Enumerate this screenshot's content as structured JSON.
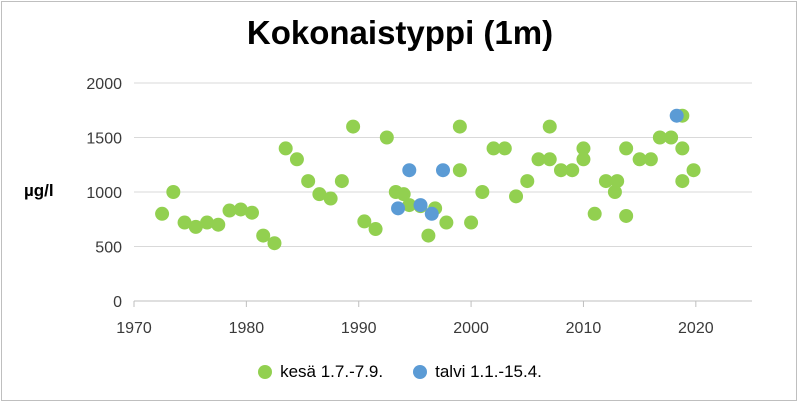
{
  "chart_data": {
    "type": "scatter",
    "title": "Kokonaistyppi (1m)",
    "xlabel": "",
    "ylabel": "µg/l",
    "xlim": [
      1970,
      2025
    ],
    "ylim": [
      0,
      2000
    ],
    "xticks": [
      1970,
      1980,
      1990,
      2000,
      2010,
      2020
    ],
    "yticks": [
      0,
      500,
      1000,
      1500,
      2000
    ],
    "grid": "horizontal",
    "legend_position": "bottom",
    "series": [
      {
        "name": "kesä 1.7.-7.9.",
        "color": "#92d050",
        "points": [
          [
            1972.5,
            800
          ],
          [
            1973.5,
            1000
          ],
          [
            1974.5,
            720
          ],
          [
            1975.5,
            680
          ],
          [
            1976.5,
            720
          ],
          [
            1977.5,
            700
          ],
          [
            1978.5,
            830
          ],
          [
            1979.5,
            840
          ],
          [
            1980.5,
            810
          ],
          [
            1981.5,
            600
          ],
          [
            1982.5,
            530
          ],
          [
            1983.5,
            1400
          ],
          [
            1984.5,
            1300
          ],
          [
            1985.5,
            1100
          ],
          [
            1986.5,
            980
          ],
          [
            1987.5,
            940
          ],
          [
            1988.5,
            1100
          ],
          [
            1989.5,
            1600
          ],
          [
            1990.5,
            730
          ],
          [
            1991.5,
            660
          ],
          [
            1992.5,
            1500
          ],
          [
            1993.3,
            1000
          ],
          [
            1994.0,
            980
          ],
          [
            1994.5,
            880
          ],
          [
            1995.5,
            870
          ],
          [
            1996.2,
            600
          ],
          [
            1996.8,
            850
          ],
          [
            1997.8,
            720
          ],
          [
            1999.0,
            1200
          ],
          [
            1999.0,
            1600
          ],
          [
            2000.0,
            720
          ],
          [
            2001.0,
            1000
          ],
          [
            2002.0,
            1400
          ],
          [
            2003.0,
            1400
          ],
          [
            2004.0,
            960
          ],
          [
            2005.0,
            1100
          ],
          [
            2006.0,
            1300
          ],
          [
            2007.0,
            1300
          ],
          [
            2007.0,
            1600
          ],
          [
            2008.0,
            1200
          ],
          [
            2009.0,
            1200
          ],
          [
            2010.0,
            1300
          ],
          [
            2010.0,
            1400
          ],
          [
            2011.0,
            800
          ],
          [
            2012.0,
            1100
          ],
          [
            2012.8,
            1000
          ],
          [
            2013.0,
            1100
          ],
          [
            2013.8,
            780
          ],
          [
            2013.8,
            1400
          ],
          [
            2015.0,
            1300
          ],
          [
            2016.0,
            1300
          ],
          [
            2016.8,
            1500
          ],
          [
            2017.8,
            1500
          ],
          [
            2018.8,
            1700
          ],
          [
            2018.8,
            1400
          ],
          [
            2018.8,
            1100
          ],
          [
            2019.8,
            1200
          ]
        ]
      },
      {
        "name": "talvi 1.1.-15.4.",
        "color": "#5b9bd5",
        "points": [
          [
            1993.5,
            850
          ],
          [
            1994.5,
            1200
          ],
          [
            1995.5,
            880
          ],
          [
            1996.5,
            800
          ],
          [
            1997.5,
            1200
          ],
          [
            2018.3,
            1700
          ]
        ]
      }
    ]
  }
}
